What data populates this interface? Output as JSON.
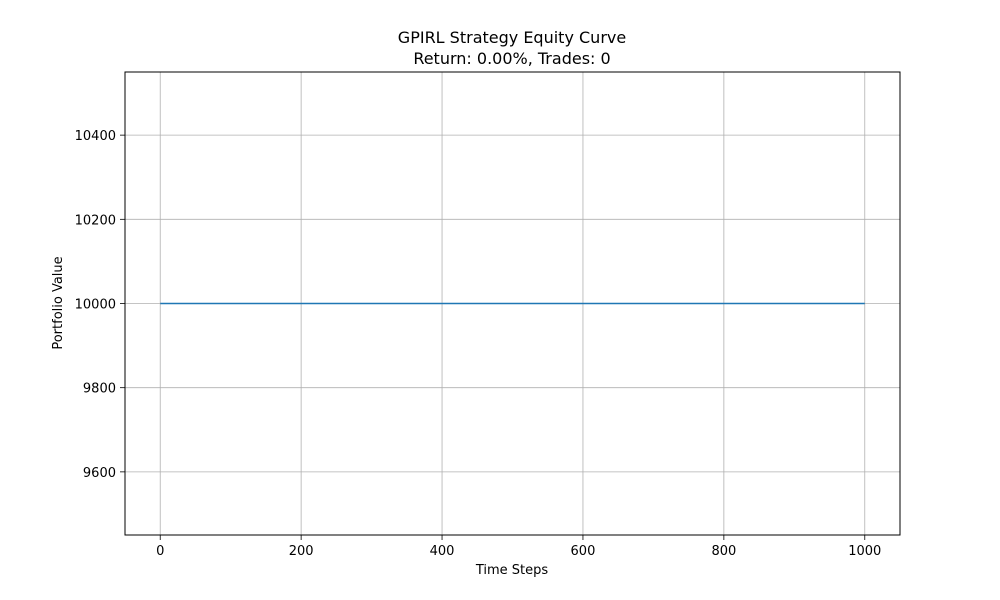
{
  "chart_data": {
    "type": "line",
    "title": "GPIRL Strategy Equity Curve",
    "subtitle": "Return: 0.00%, Trades: 0",
    "xlabel": "Time Steps",
    "ylabel": "Portfolio Value",
    "xlim": [
      -50,
      1050
    ],
    "ylim": [
      9450,
      10550
    ],
    "x_ticks": [
      0,
      200,
      400,
      600,
      800,
      1000
    ],
    "y_ticks": [
      9600,
      9800,
      10000,
      10200,
      10400
    ],
    "grid": true,
    "legend": "none",
    "series": [
      {
        "color": "#1f77b4",
        "x": [
          0,
          1000
        ],
        "y": [
          10000,
          10000
        ]
      }
    ]
  }
}
